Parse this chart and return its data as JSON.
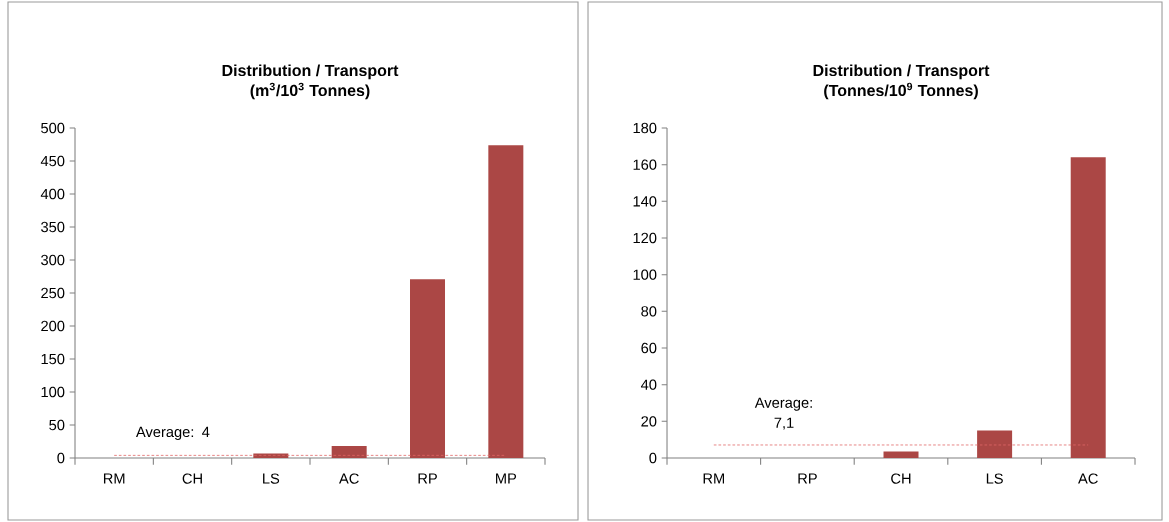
{
  "chart_data": [
    {
      "type": "bar",
      "title": "Distribution / Transport",
      "subtitle": "(m$^{3}$/10$^{3}$ Tonnes)",
      "categories": [
        "RM",
        "CH",
        "LS",
        "AC",
        "RP",
        "MP"
      ],
      "values": [
        0,
        0,
        7,
        18,
        271,
        474
      ],
      "color": "#ab4745",
      "ylim": [
        0,
        500
      ],
      "yticks": [
        0,
        50,
        100,
        150,
        200,
        250,
        300,
        350,
        400,
        450,
        500
      ],
      "grid": false,
      "ref_lines": [
        {
          "axis": "y",
          "value": 4,
          "label": "Average: 4",
          "color": "#e06666",
          "line_style": "dashed"
        }
      ]
    },
    {
      "type": "bar",
      "title": "Distribution / Transport",
      "subtitle": "(Tonnes/10$^{9}$ Tonnes)",
      "categories": [
        "RM",
        "RP",
        "CH",
        "LS",
        "AC"
      ],
      "values": [
        0,
        0,
        3.5,
        15,
        164
      ],
      "color": "#ab4745",
      "ylim": [
        0,
        180
      ],
      "yticks": [
        0,
        20,
        40,
        60,
        80,
        100,
        120,
        140,
        160,
        180
      ],
      "grid": false,
      "ref_lines": [
        {
          "axis": "y",
          "value": 7.1,
          "label": "Average: 7,1",
          "color": "#e06666",
          "line_style": "dashed"
        }
      ]
    }
  ]
}
